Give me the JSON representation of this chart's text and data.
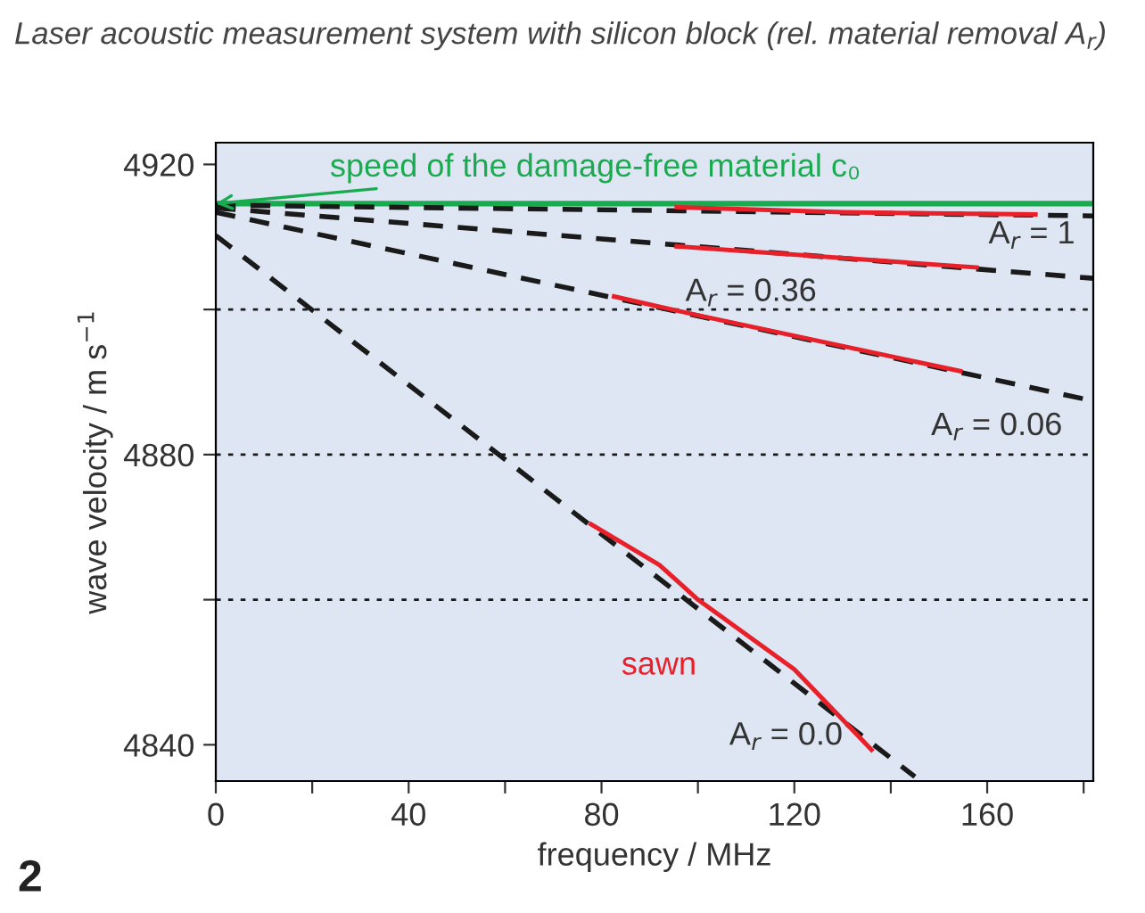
{
  "chart_data": {
    "type": "line",
    "title": "Laser acoustic measurement system with silicon block (rel. material removal A$_{r}$)",
    "xlabel": "frequency / MHz",
    "ylabel": "wave velocity / m s$^{−1}$",
    "xlim": [
      0,
      182
    ],
    "ylim": [
      4835,
      4923
    ],
    "xticks": [
      0,
      {
        "value": 20,
        "label": null
      },
      40,
      {
        "value": 60,
        "label": null
      },
      80,
      {
        "value": 100,
        "label": null
      },
      120,
      {
        "value": 140,
        "label": null
      },
      160,
      {
        "value": 180,
        "label": null
      }
    ],
    "yticks": [
      4840,
      {
        "value": 4860,
        "label": null
      },
      4880,
      {
        "value": 4900,
        "label": null
      },
      4920
    ],
    "grid": false,
    "legend": false,
    "series": [
      {
        "color": "#1a1a1a",
        "line_style": "dashed",
        "x": [
          0,
          182
        ],
        "values": [
          4914.4,
          4912.9
        ]
      },
      {
        "color": "#1a1a1a",
        "line_style": "dashed",
        "x": [
          0,
          182
        ],
        "values": [
          4914.0,
          4904.3
        ]
      },
      {
        "color": "#1a1a1a",
        "line_style": "dashed",
        "x": [
          0,
          182
        ],
        "values": [
          4913.4,
          4887.4
        ]
      },
      {
        "color": "#1a1a1a",
        "line_style": "dashed",
        "x": [
          0,
          145
        ],
        "values": [
          4910.2,
          4835.6
        ]
      },
      {
        "color": "#e8202a",
        "line_style": "solid",
        "x": [
          95.6,
          130,
          170
        ],
        "values": [
          4914.1,
          4913.4,
          4913.1
        ]
      },
      {
        "color": "#e8202a",
        "line_style": "solid",
        "x": [
          95.6,
          157.8
        ],
        "values": [
          4908.7,
          4905.8
        ]
      },
      {
        "color": "#e8202a",
        "line_style": "solid",
        "x": [
          82.6,
          100,
          154.4
        ],
        "values": [
          4901.8,
          4899.2,
          4891.5
        ]
      },
      {
        "color": "#e8202a",
        "line_style": "solid",
        "x": [
          77.8,
          92,
          100,
          120,
          136
        ],
        "values": [
          4870.4,
          4864.8,
          4860.0,
          4850.4,
          4839.3
        ]
      }
    ],
    "ref_lines": [
      {
        "axis": "y",
        "value": 4914.6,
        "line_style": "solid",
        "color": "#1aab50"
      },
      {
        "axis": "y",
        "value": 4860,
        "line_style": "dotted",
        "color": "#1a1a1a"
      },
      {
        "axis": "y",
        "value": 4880,
        "line_style": "dotted",
        "color": "#1a1a1a"
      },
      {
        "axis": "y",
        "value": 4900,
        "line_style": "dotted",
        "color": "#1a1a1a"
      }
    ],
    "annotations": [
      {
        "text": "speed of the damage-free material c₀",
        "x": 0,
        "y": 4914.6
      },
      "A$_{r}$ = 1",
      "A$_{r}$ = 0.36",
      "A$_{r}$ = 0.06",
      "sawn",
      "A$_{r}$ = 0.0",
      "2"
    ]
  }
}
